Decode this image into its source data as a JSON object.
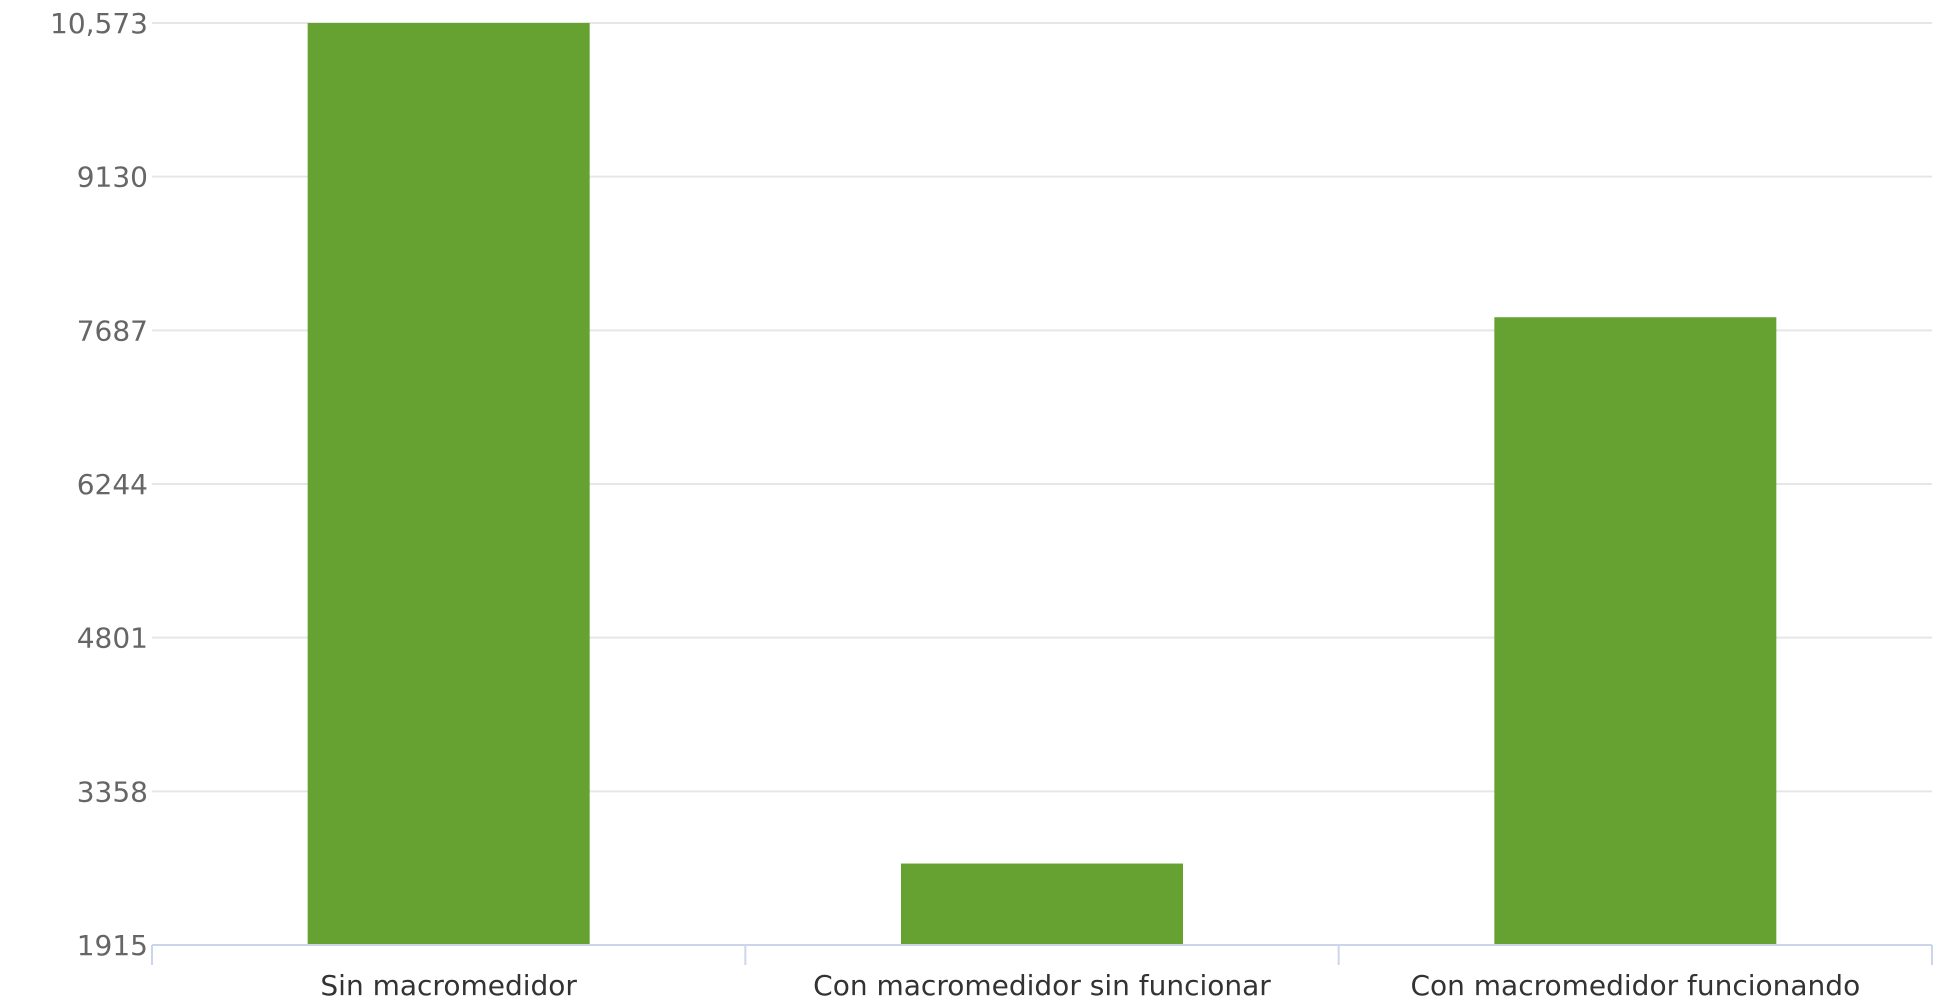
{
  "chart_data": {
    "type": "bar",
    "title": "",
    "xlabel": "",
    "ylabel": "",
    "categories": [
      "Sin macromedidor",
      "Con macromedidor sin funcionar",
      "Con macromedidor funcionando"
    ],
    "values": [
      10573,
      2680,
      7810
    ],
    "ylim": [
      1915,
      10573
    ],
    "y_ticks": [
      1915,
      3358,
      4801,
      6244,
      7687,
      9130,
      10573
    ],
    "y_tick_labels": [
      "1915",
      "3358",
      "4801",
      "6244",
      "7687",
      "9130",
      "10,573"
    ],
    "grid": true,
    "legend": "none",
    "colors": {
      "bar": "#66a232",
      "grid": "#e6e6e6",
      "axis": "#ccd6eb"
    }
  }
}
